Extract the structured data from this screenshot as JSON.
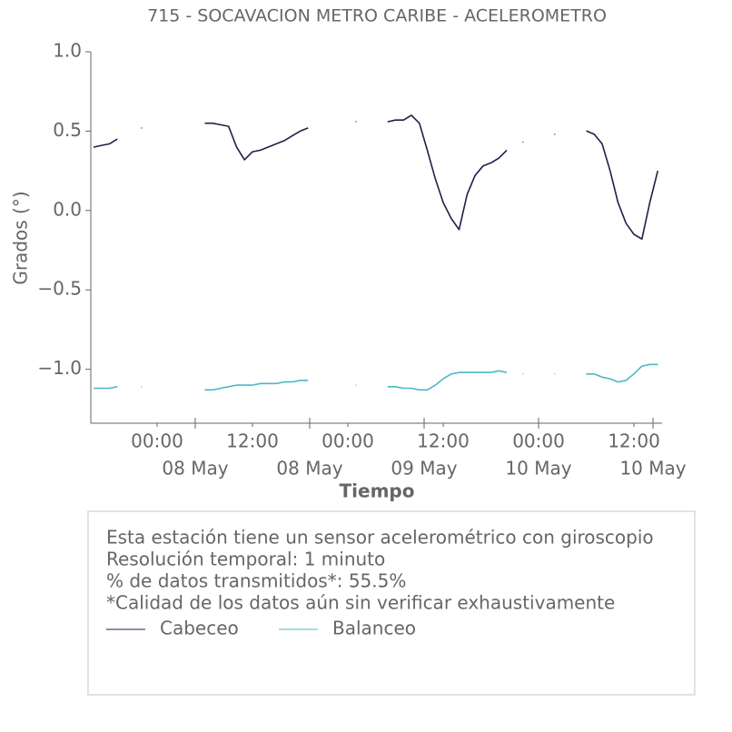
{
  "chart_data": {
    "type": "line",
    "title": "715 - SOCAVACION METRO CARIBE - ACELEROMETRO",
    "x_label": "Tiempo",
    "y_label": "Grados (°)",
    "x": [
      -8,
      -7,
      -6,
      -5,
      -4,
      -3,
      -2,
      -1,
      0,
      1,
      2,
      3,
      4,
      5,
      6,
      7,
      8,
      9,
      10,
      11,
      12,
      13,
      14,
      15,
      16,
      17,
      18,
      19,
      20,
      21,
      22,
      23,
      24,
      25,
      26,
      27,
      28,
      29,
      30,
      31,
      32,
      33,
      34,
      35,
      36,
      37,
      38,
      39,
      40,
      41,
      42,
      43,
      44,
      45,
      46,
      47,
      48,
      49,
      50,
      51,
      52,
      53,
      54,
      55,
      56,
      57,
      58,
      59,
      60,
      61,
      62,
      63
    ],
    "series": [
      {
        "name": "Cabeceo",
        "color": "#1f1f4a",
        "values": [
          0.4,
          0.41,
          0.42,
          0.45,
          null,
          null,
          0.52,
          null,
          null,
          null,
          null,
          null,
          null,
          null,
          0.55,
          0.55,
          0.54,
          0.53,
          0.4,
          0.32,
          0.37,
          0.38,
          0.4,
          0.42,
          0.44,
          0.47,
          0.5,
          0.52,
          null,
          null,
          null,
          null,
          null,
          0.56,
          null,
          null,
          null,
          0.56,
          0.57,
          0.57,
          0.6,
          0.55,
          0.38,
          0.2,
          0.05,
          -0.05,
          -0.12,
          0.1,
          0.22,
          0.28,
          0.3,
          0.33,
          0.38,
          null,
          0.43,
          null,
          null,
          null,
          0.48,
          null,
          null,
          null,
          0.5,
          0.48,
          0.42,
          0.25,
          0.05,
          -0.08,
          -0.15,
          -0.18,
          0.05,
          0.25
        ]
      },
      {
        "name": "Balanceo",
        "color": "#4bb8c8",
        "values": [
          -1.12,
          -1.12,
          -1.12,
          -1.11,
          null,
          null,
          -1.11,
          null,
          null,
          null,
          null,
          null,
          null,
          null,
          -1.13,
          -1.13,
          -1.12,
          -1.11,
          -1.1,
          -1.1,
          -1.1,
          -1.09,
          -1.09,
          -1.09,
          -1.08,
          -1.08,
          -1.07,
          -1.07,
          null,
          null,
          null,
          null,
          null,
          -1.1,
          null,
          null,
          null,
          -1.11,
          -1.11,
          -1.12,
          -1.12,
          -1.13,
          -1.13,
          -1.1,
          -1.06,
          -1.03,
          -1.02,
          -1.02,
          -1.02,
          -1.02,
          -1.02,
          -1.01,
          -1.02,
          null,
          -1.03,
          null,
          null,
          null,
          -1.03,
          null,
          null,
          null,
          -1.03,
          -1.03,
          -1.05,
          -1.06,
          -1.08,
          -1.07,
          -1.03,
          -0.98,
          -0.97,
          -0.97
        ]
      }
    ],
    "xlim": [
      -8.34,
      63.54
    ],
    "xticks": [
      {
        "value": 0,
        "label": "00:00"
      },
      {
        "value": 12,
        "label": "12:00"
      },
      {
        "value": 24,
        "label": "00:00"
      },
      {
        "value": 36,
        "label": "12:00"
      },
      {
        "value": 48,
        "label": "00:00"
      },
      {
        "value": 60,
        "label": "12:00"
      }
    ],
    "xticks_major": [
      {
        "value": 4.8,
        "label": "08 May"
      },
      {
        "value": 19.2,
        "label": "08 May"
      },
      {
        "value": 33.6,
        "label": "09 May"
      },
      {
        "value": 48,
        "label": "10 May"
      },
      {
        "value": 62.4,
        "label": "10 May"
      }
    ],
    "ylim": [
      -1.34,
      1.0
    ],
    "yticks": [
      {
        "value": 1.0,
        "label": "1.0"
      },
      0.5,
      {
        "value": 0,
        "label": "0.0"
      },
      {
        "value": -0.5,
        "label": "−0.5"
      },
      {
        "value": -1.0,
        "label": "−1.0"
      }
    ],
    "info": [
      "Esta estación tiene un sensor acelerométrico con giroscopio",
      "Resolución temporal: 1 minuto",
      "% de datos transmitidos*: 55.5%",
      "*Calidad de los datos aún sin verificar exhaustivamente"
    ]
  }
}
